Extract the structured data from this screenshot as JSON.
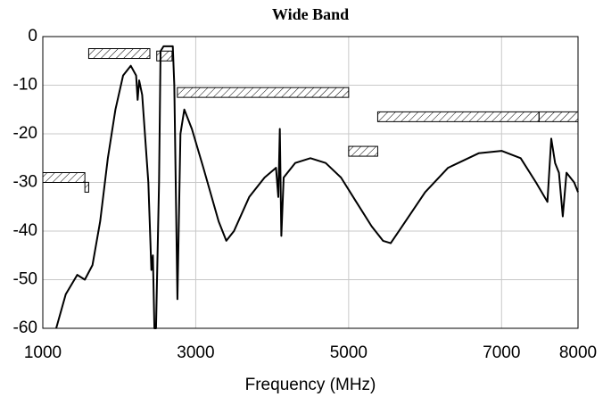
{
  "chart_data": {
    "type": "line",
    "title": "Wide Band",
    "x_label": "Frequency (MHz)",
    "x": [
      1175,
      1300,
      1450,
      1550,
      1650,
      1750,
      1850,
      1950,
      2050,
      2150,
      2220,
      2240,
      2260,
      2300,
      2380,
      2420,
      2440,
      2460,
      2480,
      2520,
      2540,
      2580,
      2700,
      2720,
      2760,
      2800,
      2850,
      2950,
      3100,
      3300,
      3400,
      3500,
      3700,
      3900,
      4050,
      4080,
      4100,
      4120,
      4150,
      4300,
      4500,
      4700,
      4900,
      5100,
      5300,
      5450,
      5550,
      5700,
      6000,
      6300,
      6700,
      7000,
      7250,
      7450,
      7600,
      7650,
      7700,
      7750,
      7800,
      7850,
      7950,
      8000
    ],
    "series": [
      {
        "color": "#000000",
        "values": [
          -60,
          -53,
          -49,
          -50,
          -47,
          -38,
          -25,
          -15,
          -8,
          -6,
          -8,
          -13,
          -9,
          -12,
          -30,
          -48,
          -45,
          -60,
          -60,
          -30,
          -3,
          -2,
          -2,
          -10,
          -54,
          -20,
          -15,
          -19,
          -27,
          -38,
          -42,
          -40,
          -33,
          -29,
          -27,
          -33,
          -19,
          -41,
          -29,
          -26,
          -25,
          -26,
          -29,
          -34,
          -39,
          -42,
          -42.5,
          -39,
          -32,
          -27,
          -24,
          -23.5,
          -25,
          -30,
          -34,
          -21,
          -26,
          -28,
          -37,
          -28,
          -30,
          -32
        ]
      }
    ],
    "masks": [
      {
        "x": [
          1000,
          1550
        ],
        "level": -30
      },
      {
        "x": [
          1550,
          1600
        ],
        "level": -32
      },
      {
        "x": [
          1600,
          2400
        ],
        "level": -4.5
      },
      {
        "x": [
          2490,
          2690
        ],
        "level": -5
      },
      {
        "x": [
          2760,
          5000
        ],
        "level": -12.5
      },
      {
        "x": [
          5000,
          5380
        ],
        "level": -24.6
      },
      {
        "x": [
          5380,
          7490
        ],
        "level": -17.5
      },
      {
        "x": [
          7490,
          8000
        ],
        "level": -17.5
      }
    ],
    "xlim": [
      1000,
      8000
    ],
    "ylim": [
      -60,
      0
    ],
    "xticks": [
      1000,
      3000,
      5000,
      7000,
      8000
    ],
    "yticks": [
      0,
      -10,
      -20,
      -30,
      -40,
      -50,
      -60
    ],
    "grid": true
  }
}
